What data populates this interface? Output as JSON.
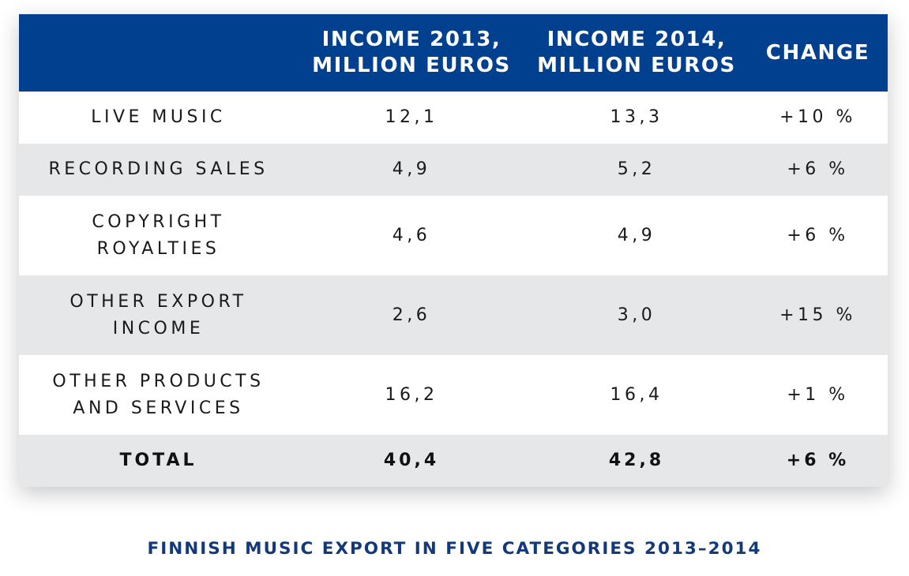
{
  "chart_data": {
    "type": "table",
    "title": "FINNISH MUSIC EXPORT IN FIVE CATEGORIES 2013–2014",
    "columns": [
      "",
      "INCOME 2013,\nMILLION EUROS",
      "INCOME 2014,\nMILLION EUROS",
      "CHANGE"
    ],
    "rows": [
      {
        "category": "LIVE MUSIC",
        "income_2013": "12,1",
        "income_2014": "13,3",
        "change": "+10 %"
      },
      {
        "category": "RECORDING SALES",
        "income_2013": "4,9",
        "income_2014": "5,2",
        "change": "+6 %"
      },
      {
        "category": "COPYRIGHT ROYALTIES",
        "income_2013": "4,6",
        "income_2014": "4,9",
        "change": "+6 %"
      },
      {
        "category": "OTHER EXPORT INCOME",
        "income_2013": "2,6",
        "income_2014": "3,0",
        "change": "+15 %"
      },
      {
        "category": "OTHER PRODUCTS AND SERVICES",
        "income_2013": "16,2",
        "income_2014": "16,4",
        "change": "+1 %"
      }
    ],
    "total": {
      "category": "TOTAL",
      "income_2013": "40,4",
      "income_2014": "42,8",
      "change": "+6 %"
    }
  },
  "colors": {
    "header_background": "#00408e",
    "header_text": "#ffffff",
    "row_alt_background": "#e6e7e9",
    "caption_text": "#12397a"
  }
}
